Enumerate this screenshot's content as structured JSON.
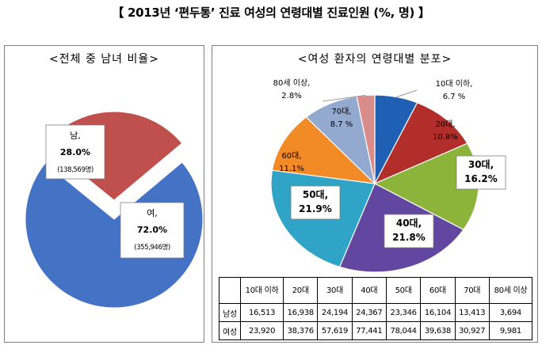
{
  "page": {
    "title": "【 2013년 ‘편두통’ 진료 여성의 연령대별 진료인원 (%, 명) 】"
  },
  "left_panel": {
    "title": "<전체 중 남녀 비율>"
  },
  "right_panel": {
    "title": "<여성 환자의 연령대별 분포>"
  },
  "table": {
    "header_blank": "",
    "columns": [
      "10대 이하",
      "20대",
      "30대",
      "40대",
      "50대",
      "60대",
      "70대",
      "80세 이상"
    ],
    "rows": [
      {
        "label": "남성",
        "values": [
          "16,513",
          "16,938",
          "24,194",
          "24,367",
          "23,346",
          "16,104",
          "13,413",
          "3,694"
        ]
      },
      {
        "label": "여성",
        "values": [
          "23,920",
          "38,376",
          "57,619",
          "77,441",
          "78,044",
          "39,638",
          "30,927",
          "9,981"
        ]
      }
    ]
  },
  "chart_data": [
    {
      "type": "pie",
      "title": "<전체 중 남녀 비율>",
      "slices": [
        {
          "label": "여,",
          "percent_label": "72.0%",
          "count_label": "(355,946명)",
          "value": 72.0,
          "color": "#4472C4",
          "exploded": false
        },
        {
          "label": "남,",
          "percent_label": "28.0%",
          "count_label": "(138,569명)",
          "value": 28.0,
          "color": "#C0504D",
          "exploded": true
        }
      ]
    },
    {
      "type": "pie",
      "title": "<여성 환자의 연령대별 분포>",
      "slices": [
        {
          "label": "10대 이하,",
          "percent_label": "6.7 %",
          "value": 6.7,
          "color": "#1F5FB4"
        },
        {
          "label": "20대,",
          "percent_label": "10.8%",
          "value": 10.8,
          "color": "#B22E2A"
        },
        {
          "label": "30대,",
          "percent_label": "16.2%",
          "value": 16.2,
          "color": "#8DB43A"
        },
        {
          "label": "40대,",
          "percent_label": "21.8%",
          "value": 21.8,
          "color": "#6247A0"
        },
        {
          "label": "50대,",
          "percent_label": "21.9%",
          "value": 21.9,
          "color": "#2FA4C7"
        },
        {
          "label": "60대,",
          "percent_label": "11.1%",
          "value": 11.1,
          "color": "#F28A26"
        },
        {
          "label": "70대,",
          "percent_label": "8.7 %",
          "value": 8.7,
          "color": "#93A9CF"
        },
        {
          "label": "80세 이상,",
          "percent_label": "2.8%",
          "value": 2.8,
          "color": "#DA8C8A"
        }
      ]
    }
  ]
}
